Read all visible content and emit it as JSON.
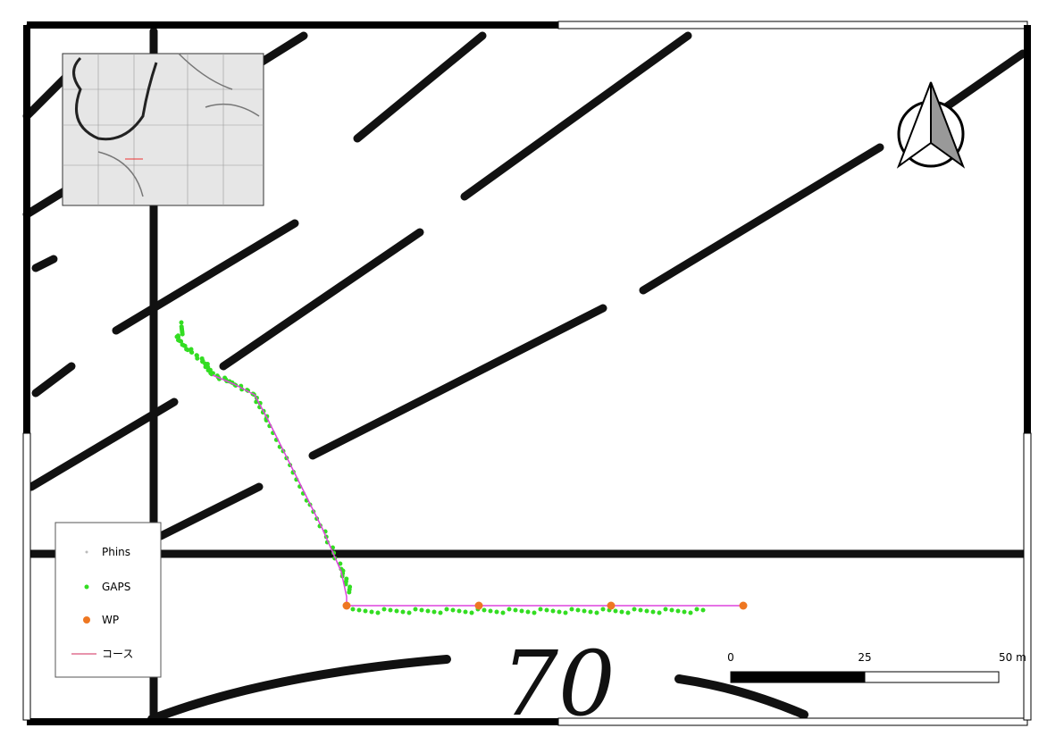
{
  "legend": {
    "items": [
      "Phins",
      "GAPS",
      "WP",
      "コース"
    ]
  },
  "background": {
    "depth_label": "70"
  },
  "scale_bar": {
    "ticks": [
      0,
      25,
      {
        "value": 50,
        "label": "50 m"
      }
    ]
  }
}
